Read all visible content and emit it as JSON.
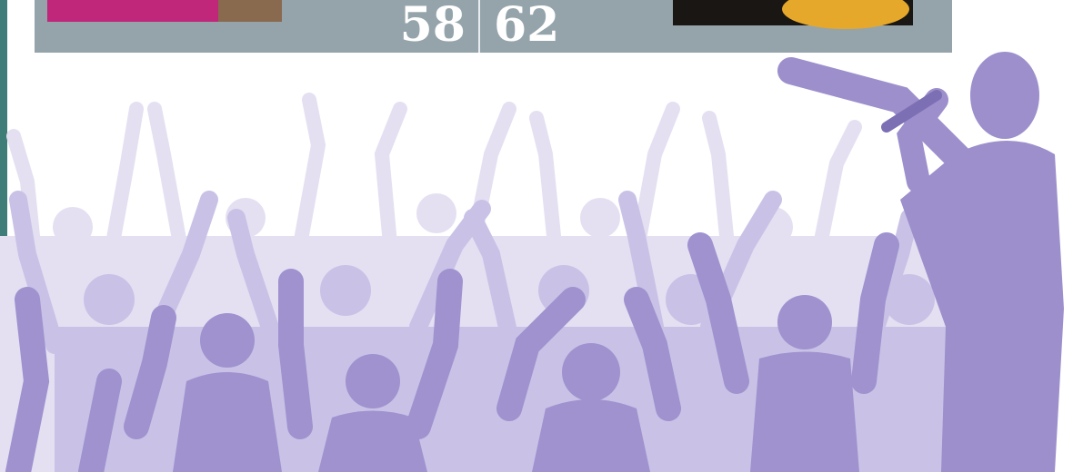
{
  "header": {
    "page_numbers": [
      58,
      62
    ]
  }
}
